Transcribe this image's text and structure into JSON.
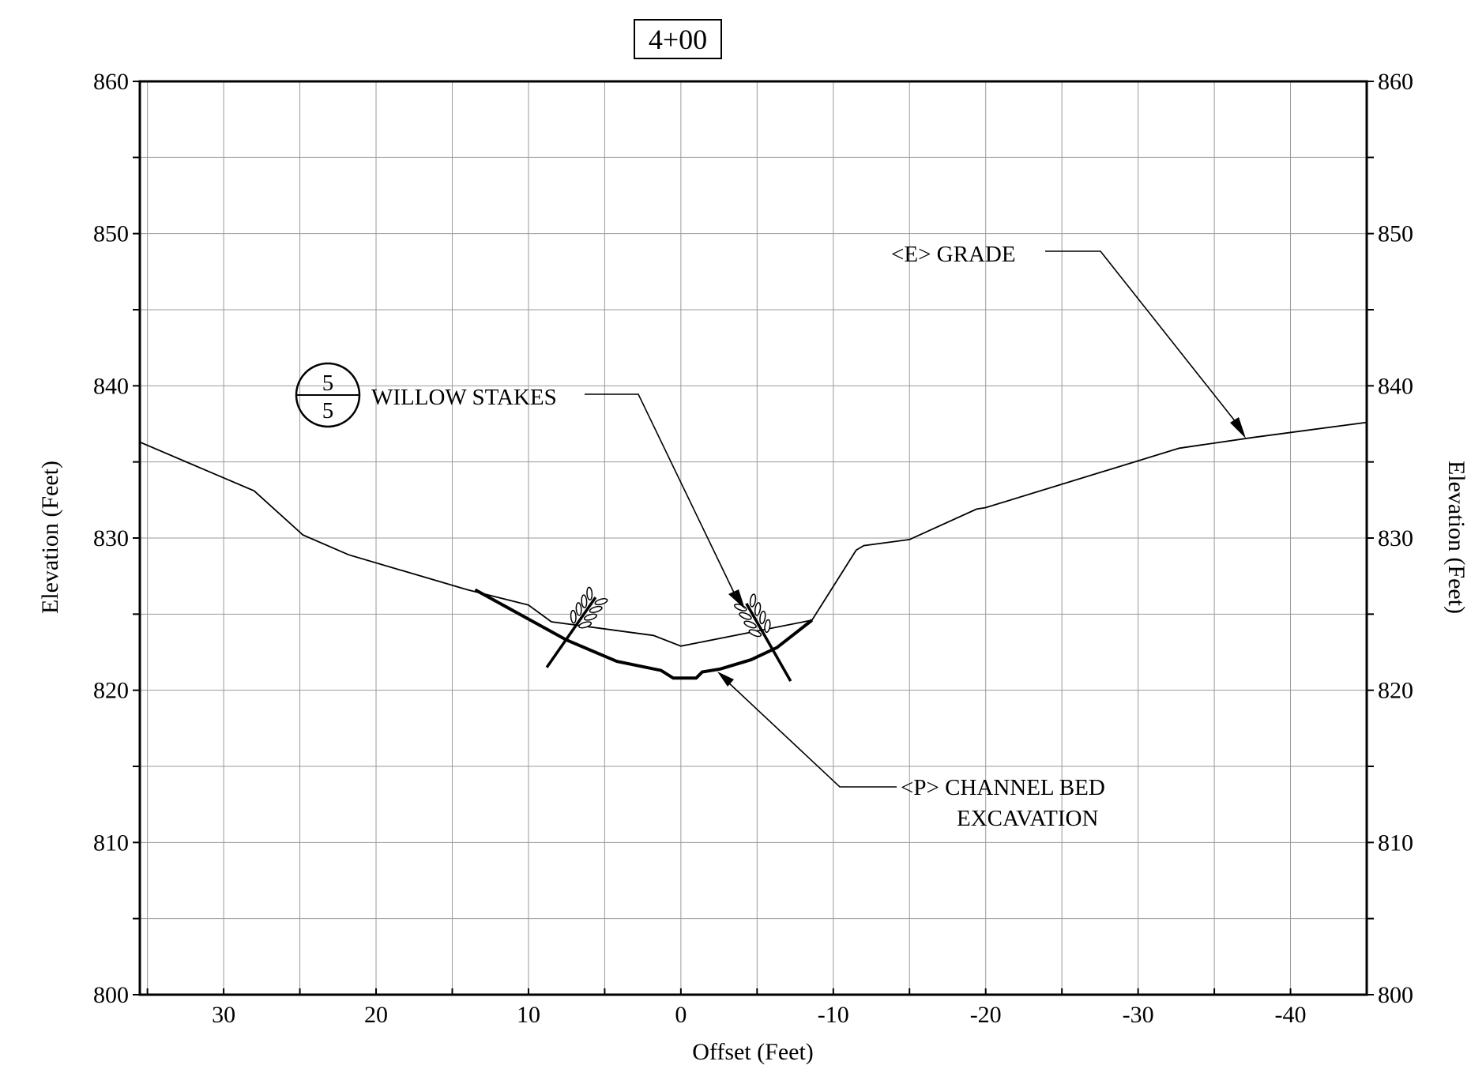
{
  "station_label": "4+00",
  "chart_data": {
    "type": "line",
    "xlabel": "Offset (Feet)",
    "ylabel_left": "Elevation (Feet)",
    "ylabel_right": "Elevation (Feet)",
    "xlim": [
      35.5,
      -45
    ],
    "ylim": [
      800,
      860
    ],
    "x_ticks": [
      30,
      20,
      10,
      0,
      -10,
      -20,
      -30,
      -40
    ],
    "x_tick_labels": [
      "30",
      "20",
      "10",
      "0",
      "-10",
      "-20",
      "-30",
      "-40"
    ],
    "y_ticks": [
      800,
      810,
      820,
      830,
      840,
      850,
      860
    ],
    "y_tick_labels": [
      "800",
      "810",
      "820",
      "830",
      "840",
      "850",
      "860"
    ],
    "grid": true,
    "series": [
      {
        "key": "existing_grade",
        "x": [
          35.5,
          28,
          24.8,
          21.8,
          14,
          10,
          8.5,
          1.8,
          0,
          -8.6,
          -11.5,
          -12,
          -15,
          -19.4,
          -20,
          -32.7,
          -37.5,
          -45
        ],
        "y": [
          836.3,
          833.1,
          830.2,
          828.9,
          826.6,
          825.6,
          824.5,
          823.6,
          822.9,
          824.6,
          829.2,
          829.5,
          829.9,
          831.9,
          832.0,
          835.9,
          836.6,
          837.6
        ],
        "style": "thin"
      },
      {
        "key": "proposed_channel",
        "x": [
          13.5,
          7.5,
          4.2,
          1.3,
          0.5,
          -1,
          -1.4,
          -2.6,
          -4.6,
          -6.3,
          -8.6
        ],
        "y": [
          826.6,
          823.3,
          821.9,
          821.3,
          820.8,
          820.8,
          821.2,
          821.4,
          822.0,
          822.8,
          824.6
        ],
        "style": "bold"
      }
    ],
    "annotations": [
      {
        "key": "existing",
        "line1": "<E> GRADE",
        "line2": "",
        "points_to": [
          -37.5,
          836.6
        ]
      },
      {
        "key": "stakes",
        "line1": "WILLOW STAKES",
        "line2": "",
        "detail_number": "5",
        "detail_sheet": "5",
        "points_to": [
          -4.8,
          825.8
        ]
      },
      {
        "key": "proposed",
        "line1": "<P> CHANNEL BED",
        "line2": "EXCAVATION",
        "points_to": [
          -2.6,
          821.4
        ]
      }
    ],
    "willow_stakes": [
      {
        "base": [
          8.8,
          821.5
        ],
        "top": [
          5.6,
          826.1
        ]
      },
      {
        "base": [
          -7.2,
          820.6
        ],
        "top": [
          -4.3,
          825.7
        ]
      }
    ]
  }
}
